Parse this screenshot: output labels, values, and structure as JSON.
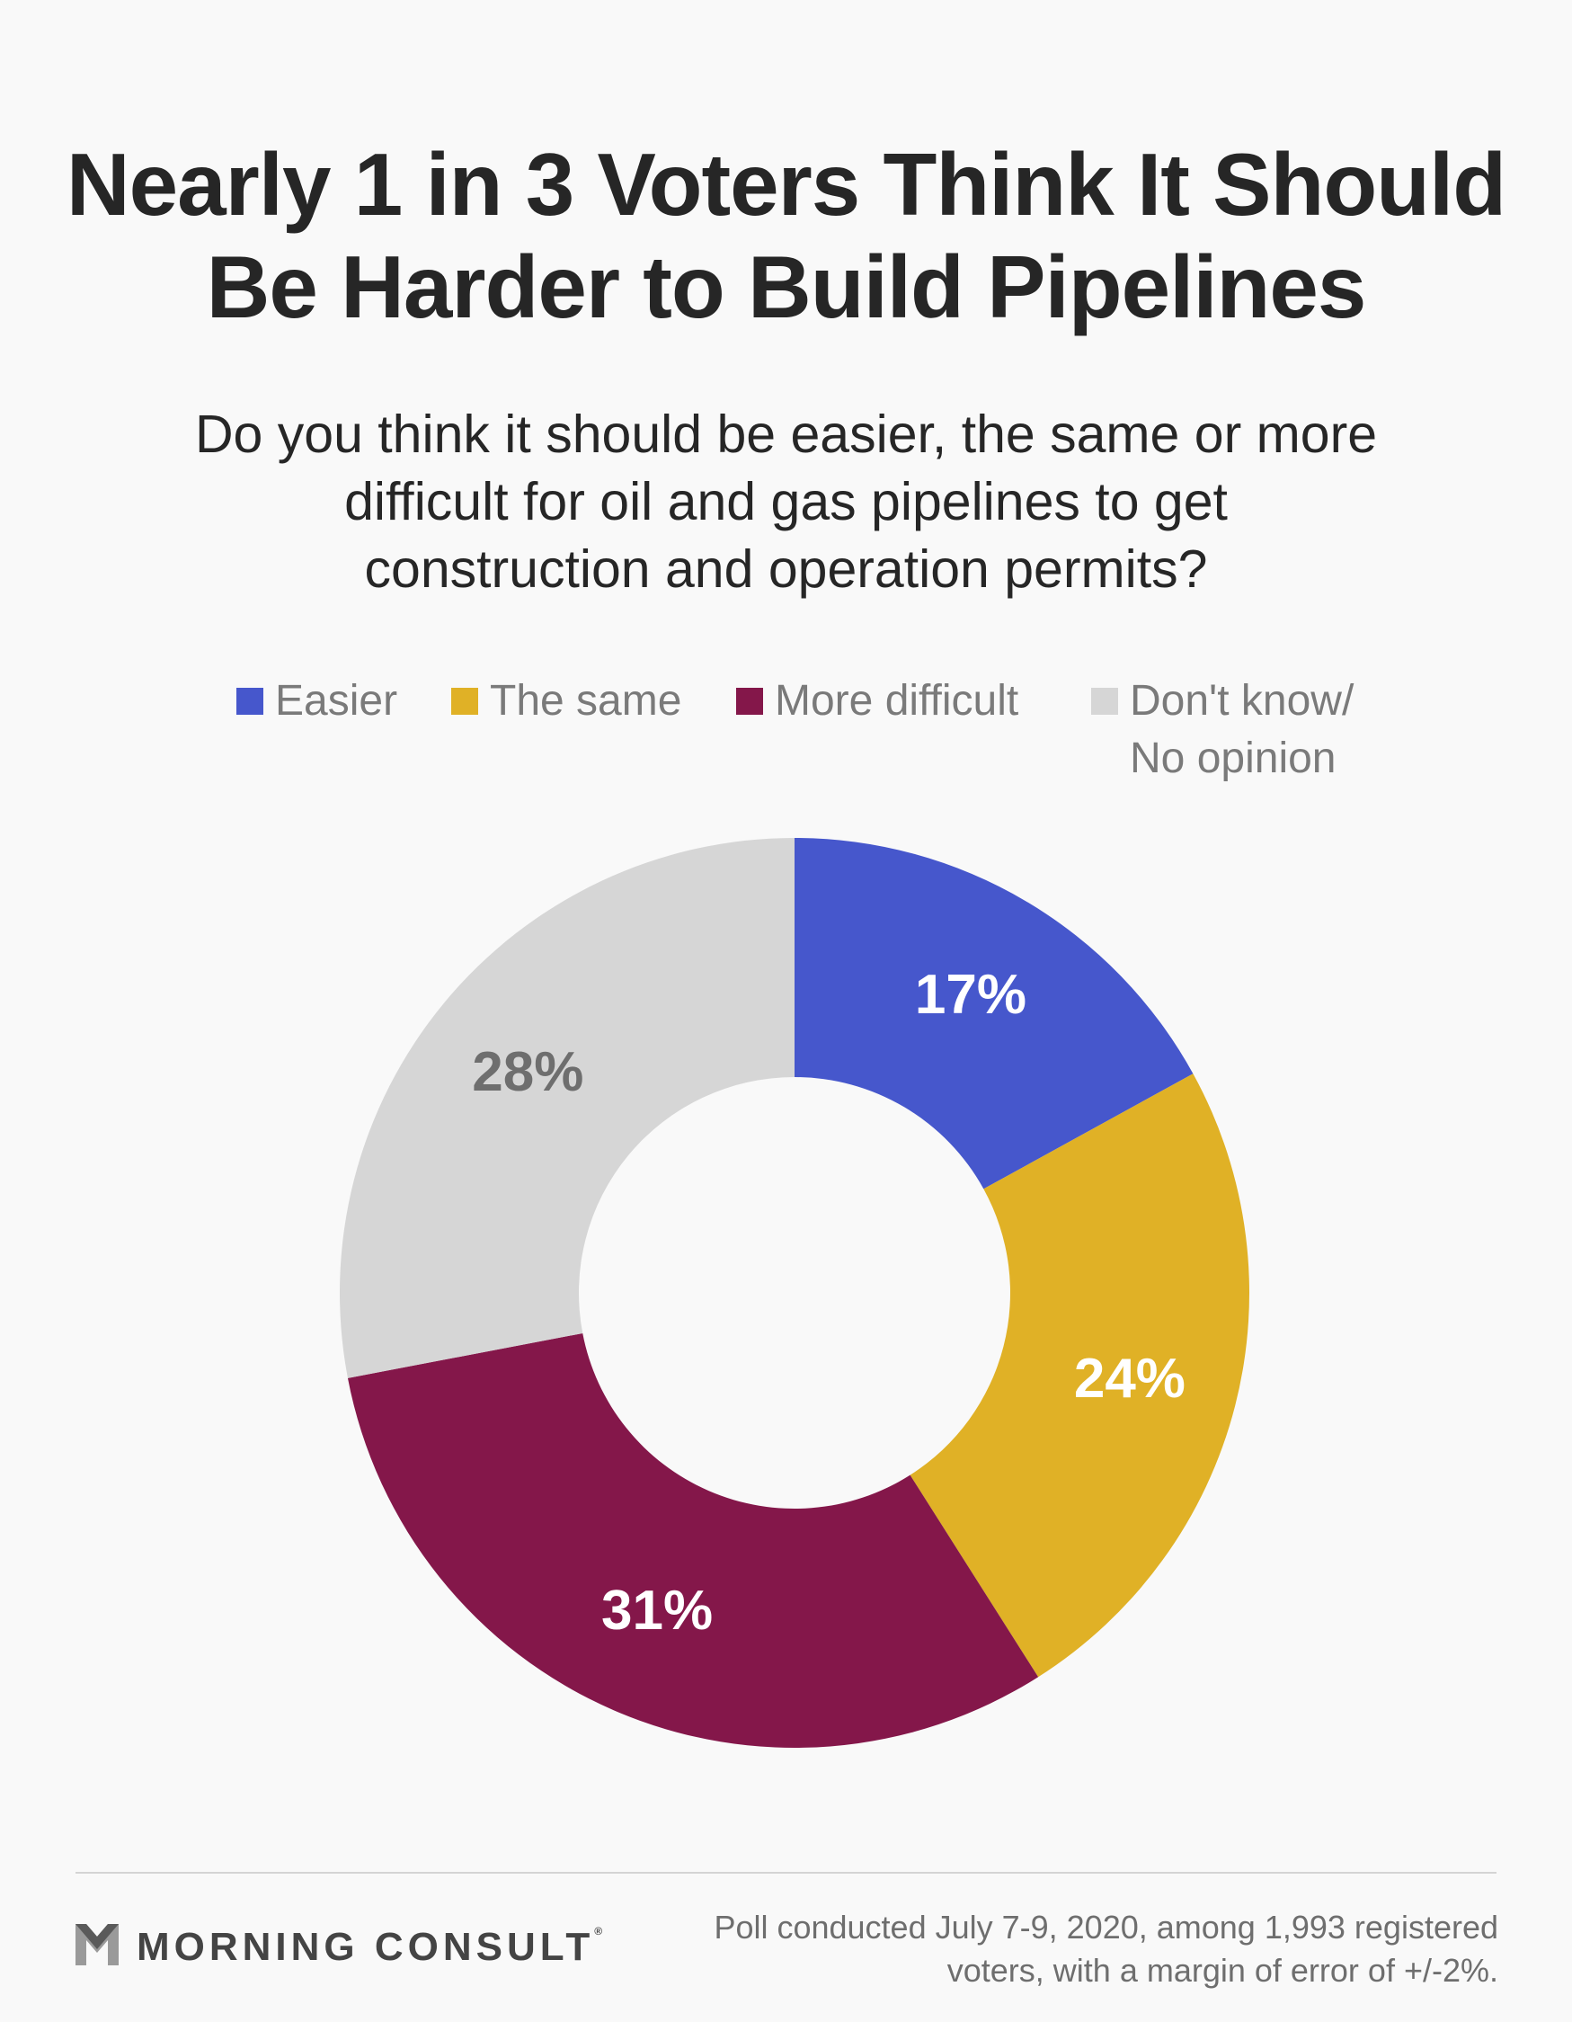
{
  "header": {
    "title_line1": "Nearly 1 in 3 Voters Think It Should",
    "title_line2": "Be Harder to Build Pipelines",
    "subtitle_line1": "Do you think it should be easier, the same or more",
    "subtitle_line2": "difficult for oil and gas pipelines to get",
    "subtitle_line3": "construction and operation permits?"
  },
  "chart_data": {
    "type": "pie",
    "style": "donut",
    "categories": [
      "Easier",
      "The same",
      "More difficult",
      "Don't know/ No opinion"
    ],
    "values": [
      17,
      24,
      31,
      28
    ],
    "value_labels": [
      "17%",
      "24%",
      "31%",
      "28%"
    ],
    "unit": "%",
    "start_angle": "12 o'clock",
    "direction": "clockwise",
    "legend_position": "top",
    "colors": [
      "#4657cc",
      "#e0b126",
      "#84174a",
      "#d6d6d6"
    ],
    "label_colors": [
      "#ffffff",
      "#ffffff",
      "#ffffff",
      "#6e6e6e"
    ]
  },
  "legend": {
    "items": [
      {
        "label": "Easier",
        "color": "#4657cc"
      },
      {
        "label": "The same",
        "color": "#e0b126"
      },
      {
        "label": "More difficult",
        "color": "#84174a"
      },
      {
        "label": "Don't know/ No opinion",
        "color": "#d6d6d6"
      }
    ]
  },
  "footer": {
    "brand": "MORNING CONSULT",
    "brand_mark": "®",
    "logo_icon": "morning-consult-m-logo-icon",
    "note_line1": "Poll conducted July 7-9, 2020, among 1,993 registered",
    "note_line2": "voters, with a margin of error of +/-2%."
  }
}
